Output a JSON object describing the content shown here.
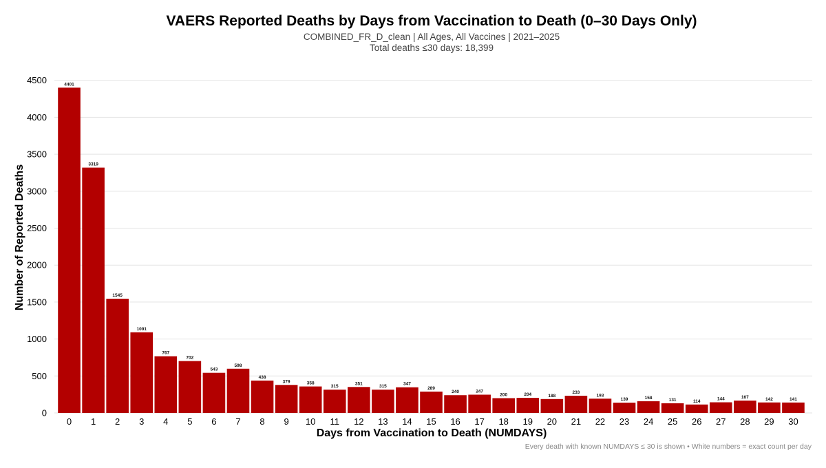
{
  "chart_data": {
    "type": "bar",
    "title": "VAERS Reported Deaths by Days from Vaccination to Death (0–30 Days Only)",
    "subtitle": "COMBINED_FR_D_clean | All Ages, All Vaccines | 2021–2025",
    "subtitle2": "Total deaths ≤30 days: 18,399",
    "xlabel": "Days from Vaccination to Death (NUMDAYS)",
    "ylabel": "Number of Reported Deaths",
    "caption": "Every death with known NUMDAYS ≤ 30 is shown • White numbers = exact count per day",
    "categories": [
      "0",
      "1",
      "2",
      "3",
      "4",
      "5",
      "6",
      "7",
      "8",
      "9",
      "10",
      "11",
      "12",
      "13",
      "14",
      "15",
      "16",
      "17",
      "18",
      "19",
      "20",
      "21",
      "22",
      "23",
      "24",
      "25",
      "26",
      "27",
      "28",
      "29",
      "30"
    ],
    "values": [
      4401,
      3319,
      1545,
      1091,
      767,
      702,
      543,
      598,
      438,
      379,
      358,
      315,
      351,
      315,
      347,
      289,
      240,
      247,
      200,
      204,
      188,
      233,
      193,
      139,
      158,
      131,
      114,
      144,
      167,
      142,
      141
    ],
    "data_labels": [
      "4401",
      "3319",
      "1545",
      "1091",
      "767",
      "702",
      "543",
      "598",
      "438",
      "379",
      "358",
      "315",
      "351",
      "315",
      "347",
      "289",
      "240",
      "247",
      "200",
      "204",
      "188",
      "233",
      "193",
      "139",
      "158",
      "131",
      "114",
      "144",
      "167",
      "142",
      "141"
    ],
    "yticks": [
      0,
      500,
      1000,
      1500,
      2000,
      2500,
      3000,
      3500,
      4000,
      4500
    ],
    "ylim": [
      0,
      4600
    ],
    "bar_color": "#b30000",
    "grid": true,
    "legend": "none"
  }
}
